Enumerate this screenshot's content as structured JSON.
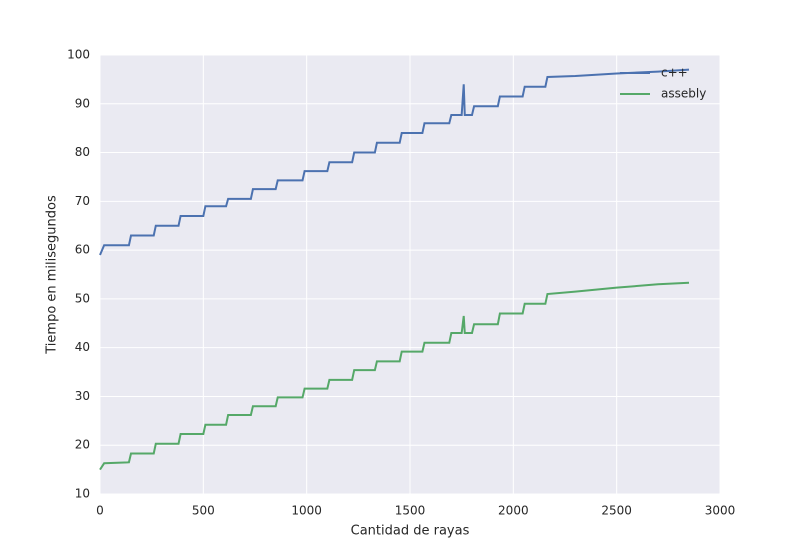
{
  "chart_data": {
    "type": "line",
    "xlabel": "Cantidad de rayas",
    "ylabel": "Tiempo en milisegundos",
    "x": [
      0,
      20,
      140,
      150,
      260,
      270,
      380,
      390,
      500,
      510,
      610,
      620,
      730,
      740,
      850,
      860,
      980,
      990,
      1100,
      1110,
      1220,
      1230,
      1330,
      1340,
      1450,
      1460,
      1560,
      1570,
      1690,
      1700,
      1750,
      1760,
      1765,
      1800,
      1810,
      1925,
      1935,
      2045,
      2055,
      2155,
      2165,
      2300,
      2500,
      2700,
      2850
    ],
    "series": [
      {
        "name": "c++",
        "color": "#4c72b0",
        "values": [
          59,
          61,
          61,
          63,
          63,
          65,
          65,
          67,
          67,
          69,
          69,
          70.5,
          70.5,
          72.5,
          72.5,
          74.3,
          74.3,
          76.2,
          76.2,
          78,
          78,
          80,
          80,
          82,
          82,
          84,
          84,
          86,
          86,
          87.7,
          87.7,
          94,
          87.7,
          87.7,
          89.5,
          89.5,
          91.5,
          91.5,
          93.5,
          93.5,
          95.5,
          95.7,
          96.2,
          96.6,
          97
        ]
      },
      {
        "name": "assebly",
        "color": "#55a868",
        "values": [
          15,
          16.3,
          16.5,
          18.3,
          18.3,
          20.3,
          20.3,
          22.3,
          22.3,
          24.2,
          24.2,
          26.2,
          26.2,
          28,
          28,
          29.8,
          29.8,
          31.6,
          31.6,
          33.4,
          33.4,
          35.4,
          35.4,
          37.2,
          37.2,
          39.2,
          39.2,
          41,
          41,
          43,
          43,
          46.5,
          43,
          43,
          44.8,
          44.8,
          47,
          47,
          49,
          49,
          51,
          51.5,
          52.3,
          53,
          53.3
        ]
      }
    ],
    "xlim": [
      0,
      3000
    ],
    "xticks": [
      0,
      500,
      1000,
      1500,
      2000,
      2500,
      3000
    ],
    "ylim": [
      10,
      100
    ],
    "yticks": [
      10,
      20,
      30,
      40,
      50,
      60,
      70,
      80,
      90,
      100
    ],
    "grid": true,
    "legend": "upper right"
  }
}
